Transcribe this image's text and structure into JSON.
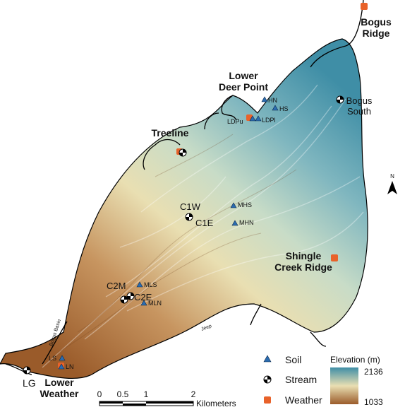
{
  "site_labels": {
    "bogus_ridge": [
      "Bogus",
      "Ridge"
    ],
    "lower_deer_point": [
      "Lower",
      "Deer Point"
    ],
    "bogus_south": [
      "Bogus",
      "South"
    ],
    "treeline": "Treeline",
    "shingle_creek_ridge": [
      "Shingle",
      "Creek Ridge"
    ],
    "lower_weather": [
      "Lower",
      "Weather"
    ],
    "lg": "LG"
  },
  "stream_gauges": {
    "c1w": "C1W",
    "c1e": "C1E",
    "c2m": "C2M",
    "c2e": "C2E"
  },
  "soil_sites": {
    "hn": "HN",
    "hs": "HS",
    "ldpu": "LDPu",
    "ldpl": "LDPl",
    "mhs": "MHS",
    "mhn": "MHN",
    "mls": "MLS",
    "mln": "MLN",
    "ls": "LS",
    "ln": "LN"
  },
  "road_labels": {
    "bogus_basin": "Bogus Basin",
    "jeep": "Jeep"
  },
  "north_arrow": "N",
  "legend": {
    "soil": "Soil",
    "stream": "Stream",
    "weather": "Weather",
    "elevation_title": "Elevation (m)",
    "elevation_max": "2136",
    "elevation_min": "1033"
  },
  "scale_bar": {
    "ticks": [
      "0",
      "0.5",
      "1",
      "2"
    ],
    "unit": "Kilometers"
  },
  "colors": {
    "high_elevation": "#3f8ea6",
    "mid_elevation": "#e9dfb2",
    "low_elevation": "#9a5b2a",
    "soil_marker": "#2b6cb0",
    "weather_marker": "#e8622a"
  }
}
